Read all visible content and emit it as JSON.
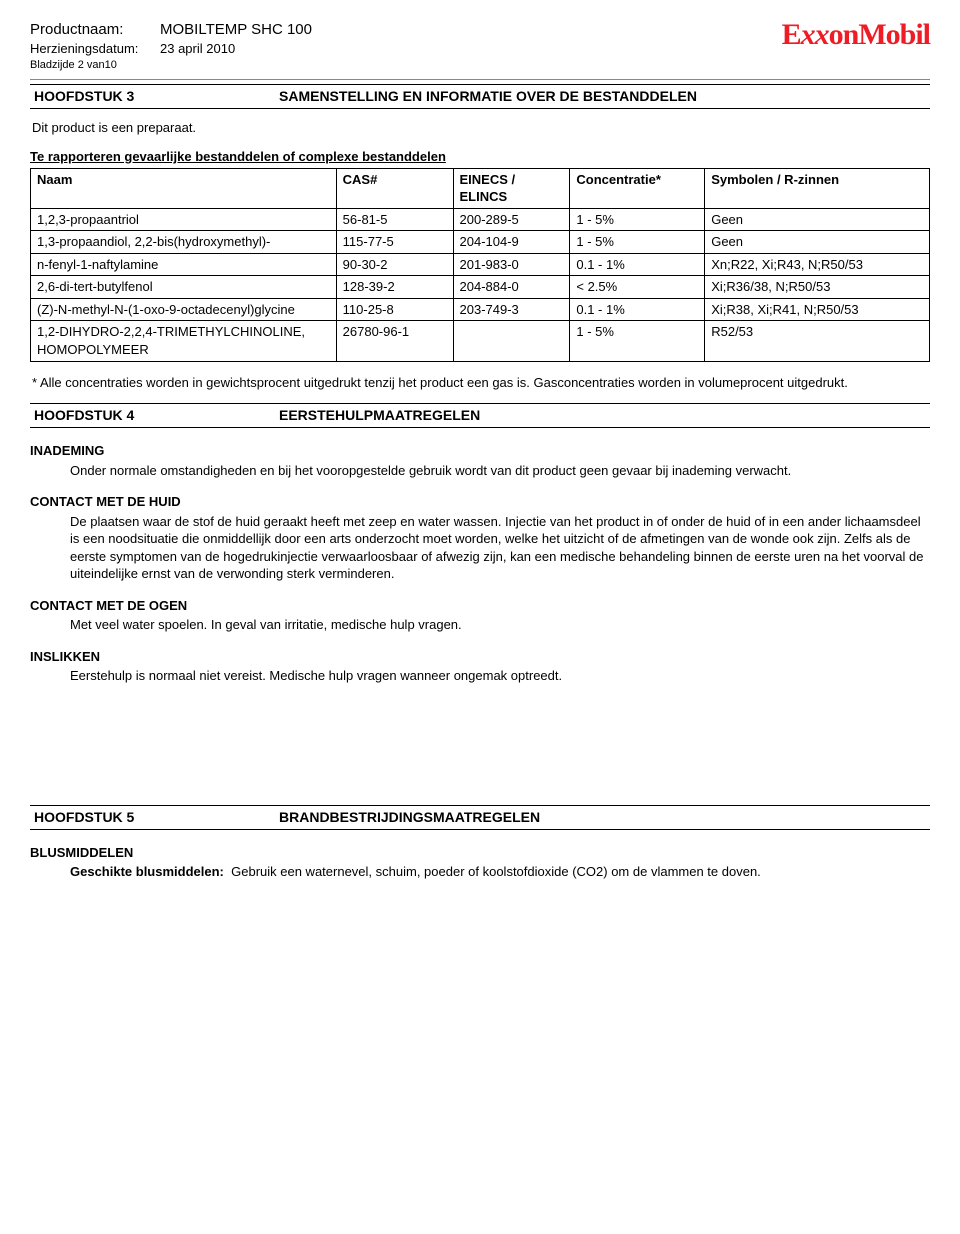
{
  "header": {
    "productLabel": "Productnaam:",
    "productValue": "MOBILTEMP SHC 100",
    "revisionLabel": "Herzieningsdatum:",
    "revisionValue": "23 april 2010",
    "pageLabel": "Bladzijde 2 van10",
    "logoText": "ExxonMobil"
  },
  "section3": {
    "barLeft": "HOOFDSTUK 3",
    "barRight": "SAMENSTELLING EN INFORMATIE OVER DE BESTANDDELEN",
    "intro": "Dit product is een preparaat.",
    "tableTitle": "Te rapporteren gevaarlijke bestanddelen of complexe bestanddelen",
    "columns": {
      "name": "Naam",
      "cas": "CAS#",
      "einecs": "EINECS / ELINCS",
      "conc": "Concentratie*",
      "sym": "Symbolen / R-zinnen"
    },
    "rows": [
      {
        "name": "1,2,3-propaantriol",
        "cas": "56-81-5",
        "einecs": "200-289-5",
        "conc": "1 - 5%",
        "sym": "Geen"
      },
      {
        "name": "1,3-propaandiol, 2,2-bis(hydroxymethyl)-",
        "cas": "115-77-5",
        "einecs": "204-104-9",
        "conc": "1 - 5%",
        "sym": "Geen"
      },
      {
        "name": "n-fenyl-1-naftylamine",
        "cas": "90-30-2",
        "einecs": "201-983-0",
        "conc": "0.1 - 1%",
        "sym": "Xn;R22, Xi;R43, N;R50/53"
      },
      {
        "name": "2,6-di-tert-butylfenol",
        "cas": "128-39-2",
        "einecs": "204-884-0",
        "conc": "< 2.5%",
        "sym": "Xi;R36/38, N;R50/53"
      },
      {
        "name": "(Z)-N-methyl-N-(1-oxo-9-octadecenyl)glycine",
        "cas": "110-25-8",
        "einecs": "203-749-3",
        "conc": "0.1 - 1%",
        "sym": "Xi;R38, Xi;R41, N;R50/53"
      },
      {
        "name": "1,2-DIHYDRO-2,2,4-TRIMETHYLCHINOLINE, HOMOPOLYMEER",
        "cas": "26780-96-1",
        "einecs": "",
        "conc": "1 - 5%",
        "sym": "R52/53"
      }
    ],
    "footnote": "* Alle concentraties worden in gewichtsprocent uitgedrukt tenzij het product een gas is.    Gasconcentraties worden in volumeprocent uitgedrukt."
  },
  "section4": {
    "barLeft": "HOOFDSTUK 4",
    "barRight": "EERSTEHULPMAATREGELEN",
    "blocks": [
      {
        "title": "INADEMING",
        "body": "Onder normale omstandigheden en bij het vooropgestelde gebruik wordt van dit product geen gevaar bij inademing verwacht."
      },
      {
        "title": "CONTACT MET DE HUID",
        "body": "De plaatsen waar de stof de huid geraakt heeft met zeep en water wassen.    Injectie van het product in of onder de huid of in een ander lichaamsdeel is een noodsituatie die onmiddellijk door een arts onderzocht moet worden, welke het uitzicht of de afmetingen van de wonde ook zijn. Zelfs als de eerste symptomen van de hogedrukinjectie verwaarloosbaar of afwezig zijn, kan een medische behandeling binnen de eerste uren na het voorval de uiteindelijke ernst van de verwonding sterk verminderen."
      },
      {
        "title": "CONTACT MET DE OGEN",
        "body": "Met veel water spoelen.   In geval van irritatie, medische hulp vragen."
      },
      {
        "title": "INSLIKKEN",
        "body": "Eerstehulp is normaal niet vereist. Medische hulp vragen wanneer ongemak optreedt."
      }
    ]
  },
  "section5": {
    "barLeft": "HOOFDSTUK 5",
    "barRight": "BRANDBESTRIJDINGSMAATREGELEN",
    "extTitle": "BLUSMIDDELEN",
    "extLabel": "Geschikte blusmiddelen:",
    "extBody": "Gebruik een waternevel, schuim, poeder of koolstofdioxide (CO2) om de vlammen te doven."
  }
}
